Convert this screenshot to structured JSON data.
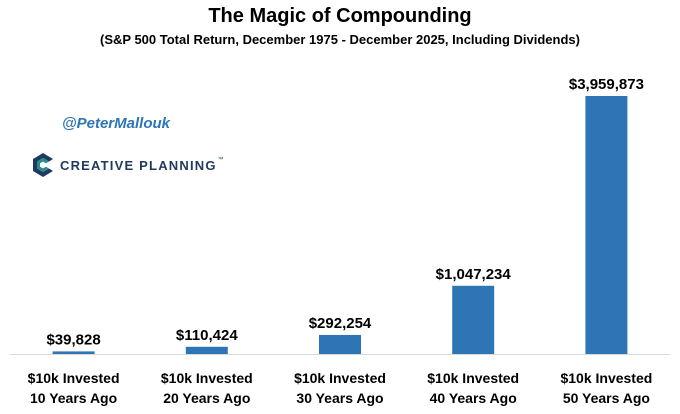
{
  "header": {
    "title": "The Magic of Compounding",
    "subtitle": "(S&P 500 Total Return, December 1975 - December 2025, Including Dividends)"
  },
  "watermark": {
    "handle": "@PeterMallouk",
    "brand": "CREATIVE PLANNING",
    "brand_mark": "™"
  },
  "colors": {
    "bar": "#2e75b6",
    "baseline": "#d9d9d9",
    "brand": "#1f3a5f",
    "handle": "#2e75b6"
  },
  "chart_data": {
    "type": "bar",
    "title": "The Magic of Compounding",
    "subtitle": "(S&P 500 Total Return, December 1975 - December 2025, Including Dividends)",
    "categories": [
      [
        "$10k Invested",
        "10 Years Ago"
      ],
      [
        "$10k Invested",
        "20 Years Ago"
      ],
      [
        "$10k Invested",
        "30 Years Ago"
      ],
      [
        "$10k Invested",
        "40 Years Ago"
      ],
      [
        "$10k Invested",
        "50 Years Ago"
      ]
    ],
    "values": [
      39828,
      110424,
      292254,
      1047234,
      3959873
    ],
    "data_labels": [
      "$39,828",
      "$110,424",
      "$292,254",
      "$1,047,234",
      "$3,959,873"
    ],
    "ylim": [
      0,
      4000000
    ],
    "grid": false,
    "legend": "none",
    "xlabel": "",
    "ylabel": ""
  }
}
